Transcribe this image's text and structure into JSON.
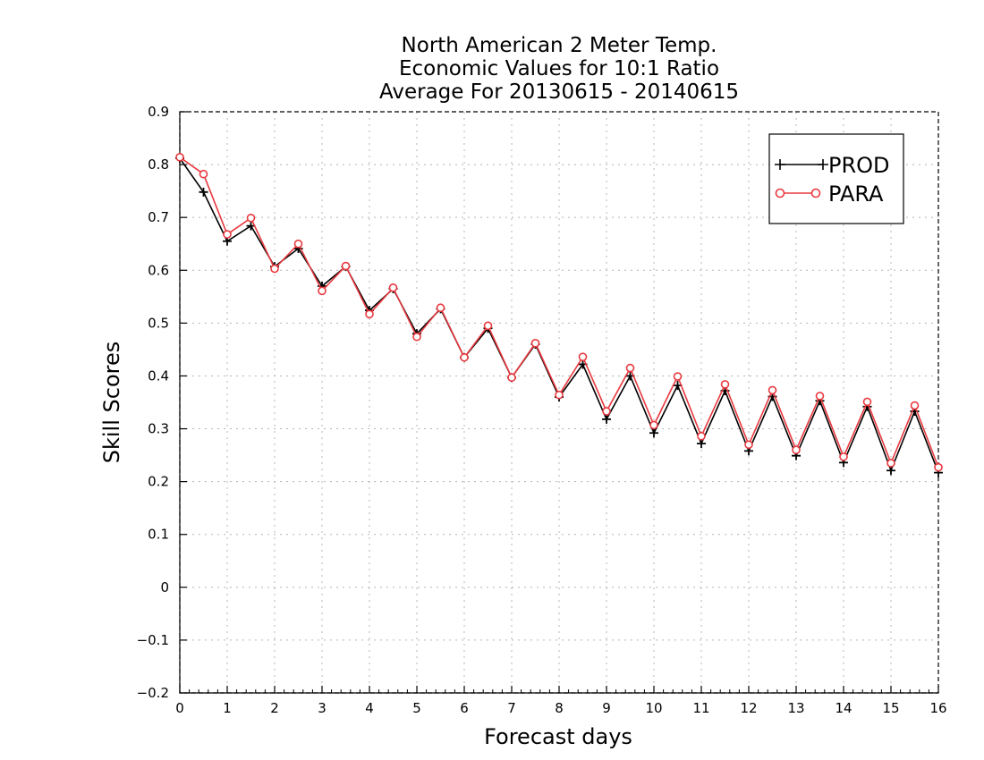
{
  "chart_data": {
    "type": "line",
    "title": [
      "North American 2 Meter Temp.",
      "Economic Values for 10:1 Ratio",
      "Average For 20130615 - 20140615"
    ],
    "xlabel": "Forecast days",
    "ylabel": "Skill Scores",
    "xlim": [
      0,
      16
    ],
    "ylim": [
      -0.2,
      0.9
    ],
    "xticks": [
      0,
      1,
      2,
      3,
      4,
      5,
      6,
      7,
      8,
      9,
      10,
      11,
      12,
      13,
      14,
      15,
      16
    ],
    "yticks": [
      -0.2,
      -0.1,
      0,
      0.1,
      0.2,
      0.3,
      0.4,
      0.5,
      0.6,
      0.7,
      0.8,
      0.9
    ],
    "ytick_labels": [
      "−0.2",
      "−0.1",
      "0",
      "0.1",
      "0.2",
      "0.3",
      "0.4",
      "0.5",
      "0.6",
      "0.7",
      "0.8",
      "0.9"
    ],
    "grid": true,
    "legend_position": "top-right",
    "x": [
      0,
      0.5,
      1,
      1.5,
      2,
      2.5,
      3,
      3.5,
      4,
      4.5,
      5,
      5.5,
      6,
      6.5,
      7,
      7.5,
      8,
      8.5,
      9,
      9.5,
      10,
      10.5,
      11,
      11.5,
      12,
      12.5,
      13,
      13.5,
      14,
      14.5,
      15,
      15.5,
      16
    ],
    "series": [
      {
        "name": "PROD",
        "color": "#000000",
        "marker": "plus",
        "values": [
          0.812,
          0.748,
          0.655,
          0.684,
          0.607,
          0.641,
          0.57,
          0.607,
          0.524,
          0.565,
          0.48,
          0.527,
          0.435,
          0.49,
          0.397,
          0.46,
          0.36,
          0.422,
          0.318,
          0.4,
          0.292,
          0.382,
          0.272,
          0.372,
          0.258,
          0.361,
          0.249,
          0.353,
          0.236,
          0.342,
          0.221,
          0.333,
          0.217
        ]
      },
      {
        "name": "PARA",
        "color": "#e8393f",
        "marker": "circle",
        "values": [
          0.814,
          0.782,
          0.668,
          0.699,
          0.603,
          0.65,
          0.561,
          0.608,
          0.517,
          0.567,
          0.474,
          0.529,
          0.435,
          0.495,
          0.397,
          0.462,
          0.364,
          0.436,
          0.333,
          0.415,
          0.307,
          0.399,
          0.286,
          0.384,
          0.27,
          0.373,
          0.26,
          0.362,
          0.247,
          0.351,
          0.235,
          0.344,
          0.227
        ]
      }
    ]
  }
}
